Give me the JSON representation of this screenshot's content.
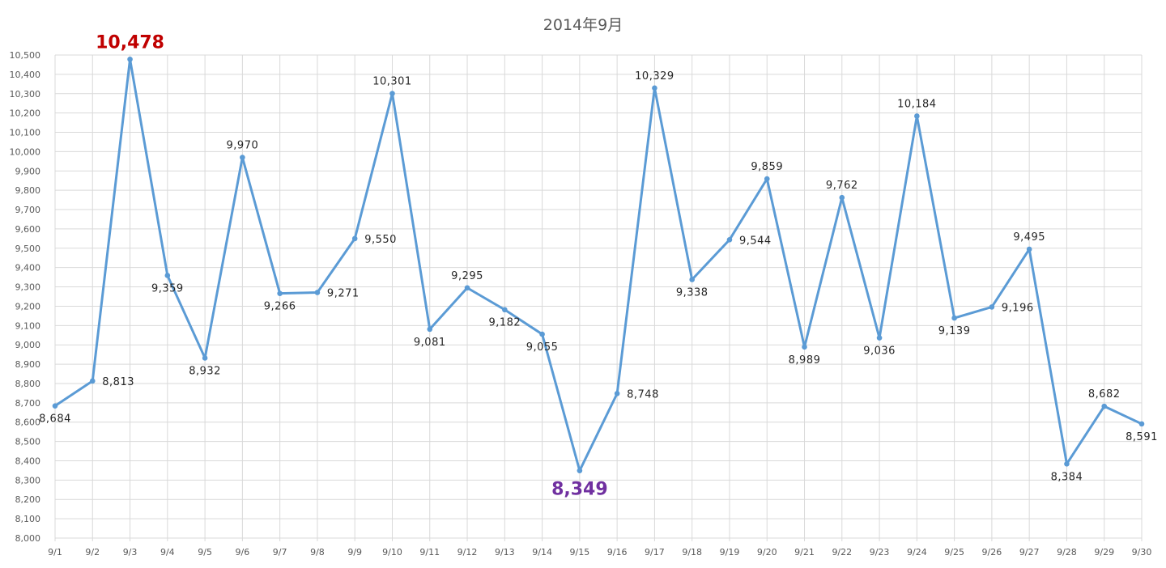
{
  "chart_data": {
    "type": "line",
    "title": "2014年9月",
    "categories": [
      "9/1",
      "9/2",
      "9/3",
      "9/4",
      "9/5",
      "9/6",
      "9/7",
      "9/8",
      "9/9",
      "9/10",
      "9/11",
      "9/12",
      "9/13",
      "9/14",
      "9/15",
      "9/16",
      "9/17",
      "9/18",
      "9/19",
      "9/20",
      "9/21",
      "9/22",
      "9/23",
      "9/24",
      "9/25",
      "9/26",
      "9/27",
      "9/28",
      "9/29",
      "9/30"
    ],
    "series": [
      {
        "values": [
          8684,
          8813,
          10478,
          9359,
          8932,
          9970,
          9266,
          9271,
          9550,
          10301,
          9081,
          9295,
          9182,
          9055,
          8349,
          8748,
          10329,
          9338,
          9544,
          9859,
          8989,
          9762,
          9036,
          10184,
          9139,
          9196,
          9495,
          8384,
          8682,
          8591
        ],
        "value_labels": [
          "8,684",
          "8,813",
          "10,478",
          "9,359",
          "8,932",
          "9,970",
          "9,266",
          "9,271",
          "9,550",
          "10,301",
          "9,081",
          "9,295",
          "9,182",
          "9,055",
          "8,349",
          "8,748",
          "10,329",
          "9,338",
          "9,544",
          "9,859",
          "8,989",
          "9,762",
          "9,036",
          "10,184",
          "9,139",
          "9,196",
          "9,495",
          "8,384",
          "8,682",
          "8,591"
        ],
        "color": "#5B9BD5"
      }
    ],
    "ylim": [
      8000,
      10500
    ],
    "y_tick_step": 100,
    "y_tick_labels": [
      "8,000",
      "8,100",
      "8,200",
      "8,300",
      "8,400",
      "8,500",
      "8,600",
      "8,700",
      "8,800",
      "8,900",
      "9,000",
      "9,100",
      "9,200",
      "9,300",
      "9,400",
      "9,500",
      "9,600",
      "9,700",
      "9,800",
      "9,900",
      "10,000",
      "10,100",
      "10,200",
      "10,300",
      "10,400",
      "10,500"
    ],
    "grid": true,
    "legend": "none",
    "highlight_max": {
      "category": "9/3",
      "label": "10,478",
      "color": "#C00000"
    },
    "highlight_min": {
      "category": "9/15",
      "label": "8,349",
      "color": "#7030A0"
    },
    "colors": {
      "grid": "#D9D9D9",
      "axis_text": "#595959",
      "label_text": "#262626"
    }
  }
}
